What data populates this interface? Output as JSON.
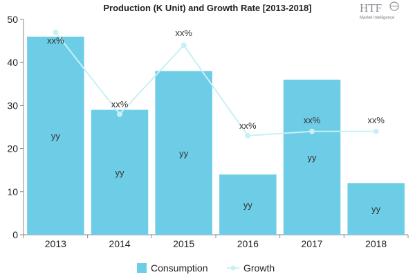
{
  "chart_data": {
    "type": "bar+line",
    "title": "Production (K Unit) and Growth Rate [2013-2018]",
    "categories": [
      "2013",
      "2014",
      "2015",
      "2016",
      "2017",
      "2018"
    ],
    "ylim": [
      0,
      50
    ],
    "yticks": [
      0,
      10,
      20,
      30,
      40,
      50
    ],
    "series": [
      {
        "name": "Consumption",
        "kind": "bar",
        "color": "#6ecde6",
        "values": [
          46,
          29,
          38,
          14,
          36,
          12
        ],
        "labels": [
          "yy",
          "yy",
          "yy",
          "yy",
          "yy",
          "yy"
        ]
      },
      {
        "name": "Growth",
        "kind": "line",
        "color": "#c8f0f6",
        "values": [
          47,
          28,
          44,
          23,
          24,
          24
        ],
        "labels": [
          "xx%",
          "xx%",
          "xx%",
          "xx%",
          "xx%",
          "xx%"
        ]
      }
    ],
    "legend_position": "bottom-center",
    "grid": false
  },
  "watermark": {
    "main": "HTF",
    "sub": "Market Intelligence",
    "color": "#8a8f98"
  }
}
